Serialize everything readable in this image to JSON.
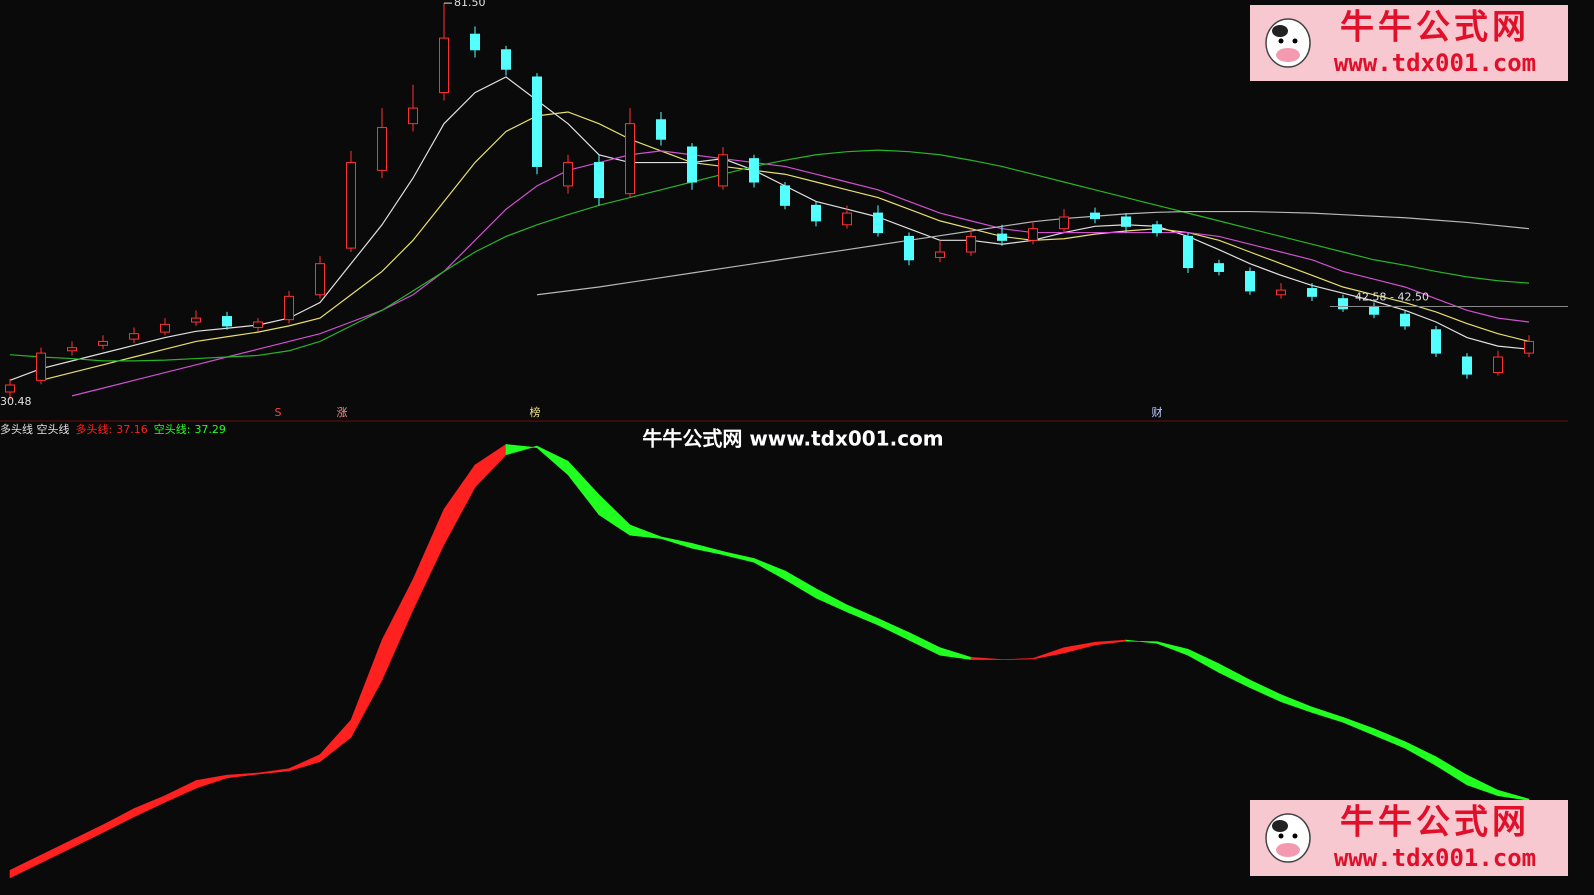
{
  "watermark": "牛牛公式网 www.tdx001.com",
  "logo": {
    "name": "牛牛公式网",
    "url": "www.tdx001.com"
  },
  "chart_data": [
    {
      "type": "candlestick",
      "ylim": [
        27.9,
        81.9
      ],
      "max_label": "81.50",
      "min_label": "30.48",
      "price_line_label": "42.58 - 42.50",
      "price_line_value": 42.5,
      "markers": [
        "S",
        "涨",
        "榜",
        "财"
      ],
      "up_color": "#ff3232",
      "down_color": "#54ffff",
      "open": [
        31.5,
        33,
        36.8,
        37.5,
        38.3,
        39.2,
        40.5,
        41.2,
        39.8,
        40.8,
        44,
        50,
        60,
        66,
        70,
        77.5,
        75.5,
        72,
        58,
        61,
        57,
        66.5,
        63,
        58,
        61.5,
        58,
        55.5,
        53,
        54.5,
        51.5,
        48.8,
        49.5,
        51.8,
        51,
        52.5,
        54.5,
        54,
        53,
        51.5,
        48,
        47,
        44,
        44.8,
        43.5,
        42.5,
        41.5,
        39.5,
        36,
        34,
        36.5
      ],
      "high": [
        33.2,
        37.2,
        38,
        38.8,
        39.8,
        41,
        42,
        41.8,
        41,
        44.5,
        49,
        62.5,
        68,
        71,
        81.5,
        78.5,
        76,
        72.5,
        62,
        62,
        68,
        67.5,
        63.5,
        63,
        62,
        58.5,
        56,
        55.5,
        55.5,
        52,
        51,
        52.5,
        53,
        53.5,
        55,
        55.2,
        54.5,
        53.5,
        52,
        48.5,
        47.5,
        45.5,
        45.5,
        44,
        43,
        42,
        40,
        36.5,
        36.8,
        38.8
      ],
      "low": [
        30.48,
        32.5,
        36.2,
        37,
        37.8,
        38.8,
        40,
        39.5,
        39.3,
        40.3,
        43.5,
        49.5,
        59,
        65,
        69,
        74.5,
        72.2,
        59.5,
        57,
        55.5,
        56.5,
        63.2,
        57.5,
        57.5,
        57.8,
        55,
        52.8,
        52.5,
        51.5,
        47.8,
        48.2,
        49,
        50.3,
        50.5,
        52,
        53.2,
        52,
        51.5,
        46.8,
        46.5,
        44,
        43.5,
        43.2,
        41.8,
        41,
        39.5,
        36,
        33.2,
        33.6,
        36
      ],
      "close": [
        32.4,
        36.5,
        37.2,
        38,
        39,
        40.2,
        41,
        40,
        40.5,
        43.8,
        48,
        61,
        65.5,
        68,
        77,
        75.5,
        73,
        60.5,
        61,
        56.5,
        66,
        64,
        58.5,
        62,
        58.5,
        55.5,
        53.5,
        54.5,
        52,
        48.5,
        49.5,
        51.5,
        51,
        52.5,
        54,
        53.8,
        52.8,
        52,
        47.5,
        47,
        44.5,
        44.6,
        43.8,
        42.2,
        41.5,
        40,
        36.5,
        33.8,
        36,
        38
      ],
      "series": [
        {
          "color": "#e0e0e0",
          "values": [
            33,
            34.5,
            35.5,
            36.5,
            37.5,
            38.5,
            39.3,
            39.7,
            40.1,
            41,
            43,
            48,
            53,
            59,
            66,
            70,
            72,
            69,
            66,
            62,
            61,
            61,
            61,
            61.5,
            60,
            58,
            56,
            55,
            54,
            52.5,
            51,
            51,
            50.5,
            51,
            52,
            52.8,
            53,
            52.8,
            51.5,
            49.8,
            48,
            46.5,
            45.2,
            44.2,
            43.2,
            42,
            40.5,
            38.5,
            37.4,
            37
          ]
        },
        {
          "color": "#e8e06a",
          "values": [
            null,
            33,
            34,
            35,
            36,
            37,
            38,
            38.6,
            39.2,
            40,
            41,
            44,
            47,
            51,
            56,
            61,
            65,
            67,
            67.5,
            66,
            64,
            62.5,
            61,
            60.5,
            60,
            59.5,
            58.5,
            57.5,
            56.5,
            55,
            53.5,
            52.5,
            51.5,
            51,
            51.2,
            51.8,
            52.2,
            52.5,
            52,
            51,
            49.5,
            48,
            46.5,
            45,
            44,
            43,
            41.8,
            40.3,
            39,
            38
          ]
        },
        {
          "color": "#d050d0",
          "values": [
            null,
            null,
            31,
            32,
            33,
            34,
            35,
            36,
            37,
            38,
            39,
            40.5,
            42,
            44,
            47,
            51,
            55,
            58,
            60,
            61,
            62,
            62.5,
            62,
            61.5,
            61,
            60.5,
            59.5,
            58.5,
            57.5,
            56,
            54.5,
            53.5,
            52.5,
            52,
            52,
            52,
            52,
            52,
            52,
            51.5,
            50.5,
            49.5,
            48.5,
            47,
            46,
            45,
            43.5,
            42,
            41,
            40.5
          ]
        },
        {
          "color": "#28b428",
          "values": [
            36.3,
            36,
            35.8,
            35.5,
            35.5,
            35.6,
            35.8,
            36,
            36.2,
            36.8,
            38,
            40,
            42,
            44.5,
            47,
            49.5,
            51.5,
            53,
            54.3,
            55.5,
            56.5,
            57.5,
            58.5,
            59.5,
            60.5,
            61.3,
            62,
            62.4,
            62.6,
            62.4,
            62,
            61.3,
            60.5,
            59.5,
            58.5,
            57.5,
            56.5,
            55.5,
            54.5,
            53.5,
            52.5,
            51.5,
            50.5,
            49.5,
            48.5,
            47.8,
            47,
            46.3,
            45.8,
            45.5
          ]
        },
        {
          "color": "#b8b8b8",
          "values": [
            null,
            null,
            null,
            null,
            null,
            null,
            null,
            null,
            null,
            null,
            null,
            null,
            null,
            null,
            null,
            null,
            null,
            44,
            44.5,
            45,
            45.6,
            46.2,
            46.8,
            47.4,
            48,
            48.6,
            49.2,
            49.8,
            50.4,
            51,
            51.6,
            52.2,
            52.8,
            53.4,
            53.8,
            54.1,
            54.4,
            54.6,
            54.7,
            54.7,
            54.7,
            54.6,
            54.5,
            54.3,
            54.1,
            53.9,
            53.6,
            53.3,
            52.9,
            52.5
          ]
        }
      ]
    },
    {
      "type": "band",
      "title": "多头线 空头线",
      "legend_sep": ":",
      "ylim": [
        29.8,
        71.9
      ],
      "series": [
        {
          "name": "多头线",
          "color": "#ff2020",
          "values": [
            30.7,
            32.1,
            33.5,
            34.9,
            36.4,
            37.6,
            39.0,
            39.5,
            39.7,
            40.1,
            41.4,
            44.6,
            52.0,
            57.6,
            64.1,
            68.2,
            70.1,
            69.8,
            67.3,
            63.6,
            61.7,
            61.4,
            60.5,
            59.9,
            59.2,
            57.6,
            55.9,
            54.6,
            53.4,
            52.0,
            50.6,
            50.2,
            50.2,
            50.3,
            51.3,
            51.8,
            52.0,
            51.7,
            50.6,
            49.0,
            47.6,
            46.3,
            45.3,
            44.4,
            43.2,
            42.0,
            40.4,
            38.6,
            37.6,
            37.16
          ]
        },
        {
          "name": "空头线",
          "color": "#20ff20",
          "values": [
            30.0,
            31.4,
            32.8,
            34.2,
            35.65,
            37.0,
            38.3,
            39.25,
            39.6,
            39.9,
            40.75,
            43.0,
            48.3,
            54.8,
            60.85,
            66.15,
            69.15,
            69.95,
            68.55,
            65.45,
            62.65,
            61.55,
            60.95,
            60.2,
            59.55,
            58.4,
            56.75,
            55.25,
            54.0,
            52.7,
            51.3,
            50.4,
            50.2,
            50.25,
            50.8,
            51.55,
            51.9,
            51.85,
            51.15,
            49.8,
            48.3,
            46.95,
            45.8,
            44.85,
            43.8,
            42.6,
            41.2,
            39.5,
            38.1,
            37.29
          ]
        }
      ]
    }
  ]
}
